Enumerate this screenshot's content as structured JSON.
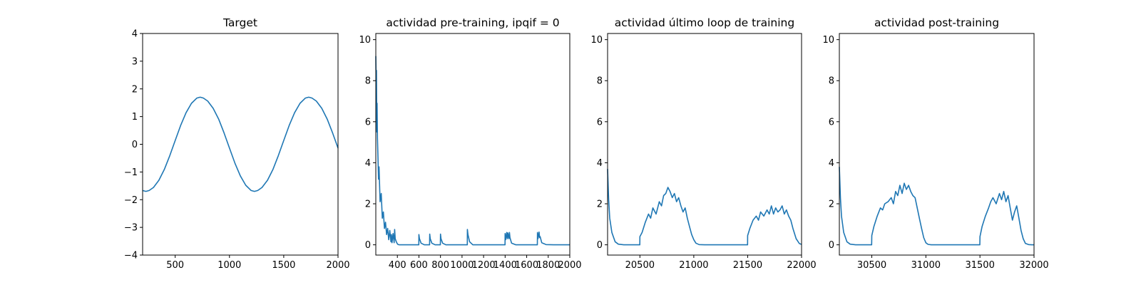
{
  "chart_data": [
    {
      "type": "line",
      "title": "Target",
      "xlim": [
        200,
        2000
      ],
      "ylim": [
        -4,
        4
      ],
      "xticks": [
        500,
        1000,
        1500,
        2000
      ],
      "xtick_labels": [
        "500",
        "1000",
        "1500",
        "2000"
      ],
      "yticks": [
        -4,
        -3,
        -2,
        -1,
        0,
        1,
        2,
        3,
        4
      ],
      "ytick_labels": [
        "−4",
        "−3",
        "−2",
        "−1",
        "0",
        "1",
        "2",
        "3",
        "4"
      ],
      "series": [
        {
          "color": "#1f77b4",
          "x": [
            200,
            230,
            260,
            300,
            350,
            400,
            450,
            500,
            550,
            600,
            650,
            700,
            730,
            760,
            800,
            850,
            900,
            950,
            1000,
            1050,
            1100,
            1150,
            1200,
            1230,
            1260,
            1300,
            1350,
            1400,
            1450,
            1500,
            1550,
            1600,
            1650,
            1700,
            1730,
            1760,
            1800,
            1850,
            1900,
            1950,
            2000
          ],
          "y": [
            -1.67,
            -1.7,
            -1.67,
            -1.56,
            -1.3,
            -0.91,
            -0.41,
            0.14,
            0.68,
            1.14,
            1.48,
            1.67,
            1.7,
            1.67,
            1.56,
            1.3,
            0.91,
            0.41,
            -0.14,
            -0.68,
            -1.14,
            -1.48,
            -1.67,
            -1.7,
            -1.67,
            -1.56,
            -1.3,
            -0.91,
            -0.41,
            0.14,
            0.68,
            1.14,
            1.48,
            1.67,
            1.7,
            1.67,
            1.56,
            1.3,
            0.91,
            0.41,
            -0.14
          ]
        }
      ]
    },
    {
      "type": "line",
      "title": "actividad pre-training, ipqif = 0",
      "xlim": [
        200,
        2000
      ],
      "ylim": [
        -0.5,
        10.3
      ],
      "xticks": [
        400,
        600,
        800,
        1000,
        1200,
        1400,
        1600,
        1800,
        2000
      ],
      "xtick_labels": [
        "400",
        "600",
        "800",
        "1000",
        "1200",
        "1400",
        "1600",
        "1800",
        "2000"
      ],
      "yticks": [
        0,
        2,
        4,
        6,
        8,
        10
      ],
      "ytick_labels": [
        "0",
        "2",
        "4",
        "6",
        "8",
        "10"
      ],
      "series": [
        {
          "color": "#1f77b4",
          "x": [
            200,
            203,
            206,
            209,
            212,
            215,
            220,
            225,
            230,
            240,
            250,
            260,
            270,
            280,
            290,
            300,
            310,
            320,
            330,
            340,
            345,
            350,
            360,
            370,
            375,
            380,
            390,
            400,
            405,
            410,
            420,
            430,
            450,
            500,
            550,
            599,
            600,
            605,
            620,
            650,
            699,
            700,
            705,
            720,
            750,
            799,
            800,
            805,
            820,
            850,
            900,
            1000,
            1049,
            1050,
            1055,
            1070,
            1100,
            1200,
            1300,
            1399,
            1400,
            1405,
            1415,
            1420,
            1425,
            1435,
            1440,
            1445,
            1460,
            1500,
            1600,
            1699,
            1700,
            1705,
            1715,
            1720,
            1725,
            1740,
            1780,
            1850,
            2000
          ],
          "y": [
            9.2,
            7.8,
            8.5,
            5.5,
            6.9,
            5.2,
            4.3,
            3.2,
            3.8,
            2.1,
            2.5,
            1.3,
            1.6,
            0.8,
            1.1,
            0.5,
            0.8,
            0.25,
            0.7,
            0.15,
            0.5,
            0.1,
            0.55,
            0.1,
            0.75,
            0.3,
            0.15,
            0.05,
            0.02,
            0.01,
            0,
            0,
            0,
            0,
            0,
            0,
            0.5,
            0.3,
            0.08,
            0,
            0,
            0.52,
            0.3,
            0.08,
            0,
            0,
            0.52,
            0.3,
            0.08,
            0,
            0,
            0,
            0,
            0.75,
            0.5,
            0.15,
            0,
            0,
            0,
            0,
            0.55,
            0.25,
            0.6,
            0.3,
            0.58,
            0.3,
            0.6,
            0.35,
            0.08,
            0,
            0,
            0,
            0.6,
            0.3,
            0.62,
            0.35,
            0.4,
            0.1,
            0.01,
            0,
            0
          ]
        }
      ]
    },
    {
      "type": "line",
      "title": "actividad último loop de training",
      "xlim": [
        20200,
        22000
      ],
      "ylim": [
        -0.5,
        10.3
      ],
      "xticks": [
        20500,
        21000,
        21500,
        22000
      ],
      "xtick_labels": [
        "20500",
        "21000",
        "21500",
        "22000"
      ],
      "yticks": [
        0,
        2,
        4,
        6,
        8,
        10
      ],
      "ytick_labels": [
        "0",
        "2",
        "4",
        "6",
        "8",
        "10"
      ],
      "series": [
        {
          "color": "#1f77b4",
          "x": [
            20200,
            20210,
            20220,
            20240,
            20270,
            20300,
            20350,
            20400,
            20450,
            20499,
            20500,
            20520,
            20550,
            20580,
            20600,
            20620,
            20650,
            20680,
            20700,
            20720,
            20740,
            20760,
            20780,
            20800,
            20820,
            20840,
            20860,
            20880,
            20900,
            20920,
            20940,
            20960,
            20980,
            21000,
            21020,
            21050,
            21100,
            21200,
            21300,
            21400,
            21499,
            21500,
            21520,
            21550,
            21580,
            21600,
            21620,
            21650,
            21680,
            21700,
            21720,
            21740,
            21760,
            21780,
            21800,
            21820,
            21840,
            21860,
            21880,
            21900,
            21920,
            21950,
            21980,
            22000
          ],
          "y": [
            3.7,
            2.2,
            1.3,
            0.6,
            0.15,
            0.03,
            0,
            0,
            0,
            0,
            0.4,
            0.6,
            1.1,
            1.5,
            1.3,
            1.8,
            1.5,
            2.1,
            1.9,
            2.4,
            2.5,
            2.8,
            2.6,
            2.3,
            2.5,
            2.1,
            2.3,
            1.9,
            1.6,
            1.8,
            1.3,
            0.9,
            0.5,
            0.25,
            0.08,
            0.01,
            0,
            0,
            0,
            0,
            0,
            0.45,
            0.8,
            1.2,
            1.4,
            1.2,
            1.6,
            1.4,
            1.7,
            1.5,
            1.9,
            1.5,
            1.8,
            1.6,
            1.7,
            1.9,
            1.5,
            1.7,
            1.4,
            1.2,
            0.8,
            0.3,
            0.06,
            0.02
          ]
        }
      ]
    },
    {
      "type": "line",
      "title": "actividad post-training",
      "xlim": [
        30200,
        32000
      ],
      "ylim": [
        -0.5,
        10.3
      ],
      "xticks": [
        30500,
        31000,
        31500,
        32000
      ],
      "xtick_labels": [
        "30500",
        "31000",
        "31500",
        "32000"
      ],
      "yticks": [
        0,
        2,
        4,
        6,
        8,
        10
      ],
      "ytick_labels": [
        "0",
        "2",
        "4",
        "6",
        "8",
        "10"
      ],
      "series": [
        {
          "color": "#1f77b4",
          "x": [
            30200,
            30210,
            30220,
            30240,
            30270,
            30300,
            30350,
            30400,
            30450,
            30499,
            30500,
            30520,
            30550,
            30580,
            30600,
            30620,
            30650,
            30680,
            30700,
            30720,
            30740,
            30760,
            30780,
            30800,
            30820,
            30840,
            30860,
            30880,
            30900,
            30920,
            30940,
            30960,
            30980,
            31000,
            31020,
            31050,
            31100,
            31200,
            31300,
            31400,
            31499,
            31500,
            31520,
            31550,
            31580,
            31600,
            31620,
            31650,
            31680,
            31700,
            31720,
            31740,
            31760,
            31780,
            31800,
            31820,
            31840,
            31860,
            31880,
            31900,
            31920,
            31950,
            31980,
            32000
          ],
          "y": [
            3.8,
            2.3,
            1.4,
            0.6,
            0.15,
            0.03,
            0,
            0,
            0,
            0,
            0.45,
            0.9,
            1.4,
            1.8,
            1.7,
            2.0,
            2.1,
            2.3,
            2.0,
            2.6,
            2.4,
            2.9,
            2.5,
            3.0,
            2.7,
            2.9,
            2.6,
            2.4,
            2.3,
            1.8,
            1.3,
            0.8,
            0.35,
            0.1,
            0.02,
            0,
            0,
            0,
            0,
            0,
            0,
            0.4,
            0.9,
            1.4,
            1.8,
            2.1,
            2.3,
            2.0,
            2.5,
            2.2,
            2.6,
            2.1,
            2.4,
            1.8,
            1.2,
            1.6,
            1.9,
            1.3,
            0.7,
            0.3,
            0.07,
            0.01,
            0,
            0
          ]
        }
      ]
    }
  ]
}
